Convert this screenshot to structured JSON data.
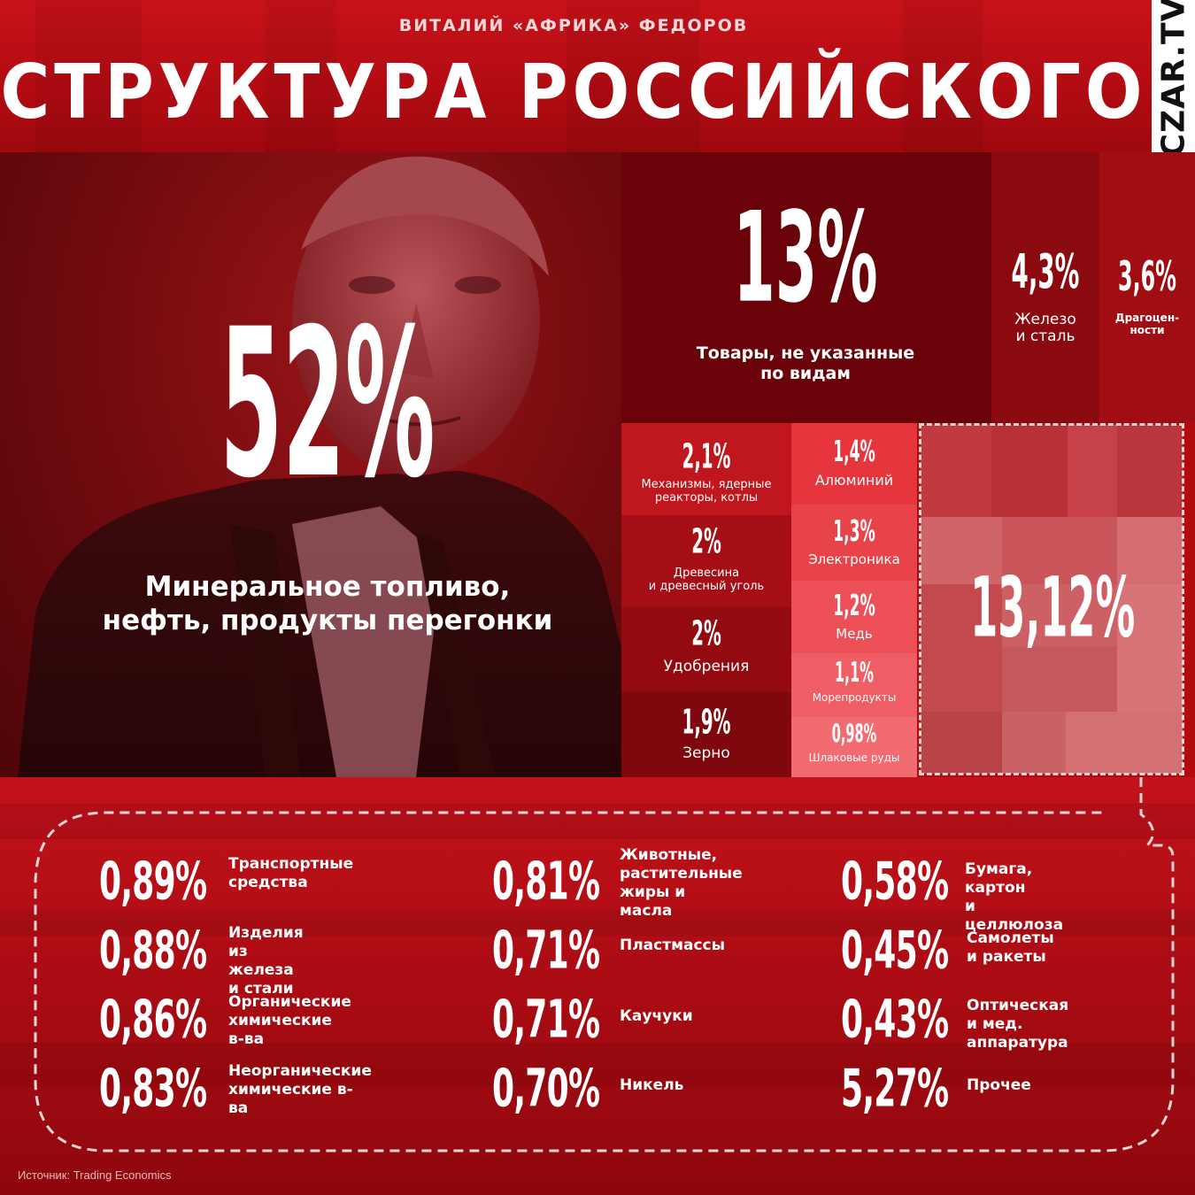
{
  "header": {
    "author": "ВИТАЛИЙ «АФРИКА» ФЕДОРОВ",
    "title": "СТРУКТУРА РОССИЙСКОГО ЭКСПОРТА",
    "logo": "CZAR.TV"
  },
  "colors": {
    "background": "#b30a10",
    "photo_overlay": "#6f0a0e",
    "block_dark": "#6a0309",
    "block_medium": "#8a0a10",
    "block_light": "#c0161d",
    "block_pink": "#e9434a",
    "other_block": "#c24a4e"
  },
  "chart_data": {
    "type": "treemap",
    "title": "СТРУКТУРА РОССИЙСКОГО ЭКСПОРТА",
    "unit": "%",
    "blocks": [
      {
        "value_label": "52%",
        "value": 52,
        "label": "Минеральное топливо,\nнефть, продукты перегонки"
      },
      {
        "value_label": "13%",
        "value": 13,
        "label": "Товары, не указанные\nпо видам"
      },
      {
        "value_label": "4,3%",
        "value": 4.3,
        "label": "Железо\nи сталь"
      },
      {
        "value_label": "3,6%",
        "value": 3.6,
        "label": "Драгоцен-\nности"
      },
      {
        "value_label": "2,1%",
        "value": 2.1,
        "label": "Механизмы, ядерные\nреакторы, котлы"
      },
      {
        "value_label": "2%",
        "value": 2,
        "label": "Древесина\nи древесный уголь"
      },
      {
        "value_label": "2%",
        "value": 2,
        "label": "Удобрения"
      },
      {
        "value_label": "1,9%",
        "value": 1.9,
        "label": "Зерно"
      },
      {
        "value_label": "1,4%",
        "value": 1.4,
        "label": "Алюминий"
      },
      {
        "value_label": "1,3%",
        "value": 1.3,
        "label": "Электроника"
      },
      {
        "value_label": "1,2%",
        "value": 1.2,
        "label": "Медь"
      },
      {
        "value_label": "1,1%",
        "value": 1.1,
        "label": "Морепродукты"
      },
      {
        "value_label": "0,98%",
        "value": 0.98,
        "label": "Шлаковые руды"
      },
      {
        "value_label": "13,12%",
        "value": 13.12,
        "label": ""
      }
    ],
    "breakdown": [
      {
        "value_label": "0,89%",
        "value": 0.89,
        "label": "Транспортные\nсредства"
      },
      {
        "value_label": "0,88%",
        "value": 0.88,
        "label": "Изделия\nиз железа и стали"
      },
      {
        "value_label": "0,86%",
        "value": 0.86,
        "label": "Органические\nхимические в-ва"
      },
      {
        "value_label": "0,83%",
        "value": 0.83,
        "label": "Неорганические\nхимические в-ва"
      },
      {
        "value_label": "0,81%",
        "value": 0.81,
        "label": "Животные,\nрастительные\nжиры и масла"
      },
      {
        "value_label": "0,71%",
        "value": 0.71,
        "label": "Пластмассы"
      },
      {
        "value_label": "0,71%",
        "value": 0.71,
        "label": "Каучуки"
      },
      {
        "value_label": "0,70%",
        "value": 0.7,
        "label": "Никель"
      },
      {
        "value_label": "0,58%",
        "value": 0.58,
        "label": "Бумага, картон\nи целлюлоза"
      },
      {
        "value_label": "0,45%",
        "value": 0.45,
        "label": "Самолеты\nи ракеты"
      },
      {
        "value_label": "0,43%",
        "value": 0.43,
        "label": "Оптическая\nи мед. аппаратура"
      },
      {
        "value_label": "5,27%",
        "value": 5.27,
        "label": "Прочее"
      }
    ]
  },
  "footer": {
    "source": "Источник: Trading Economics"
  }
}
